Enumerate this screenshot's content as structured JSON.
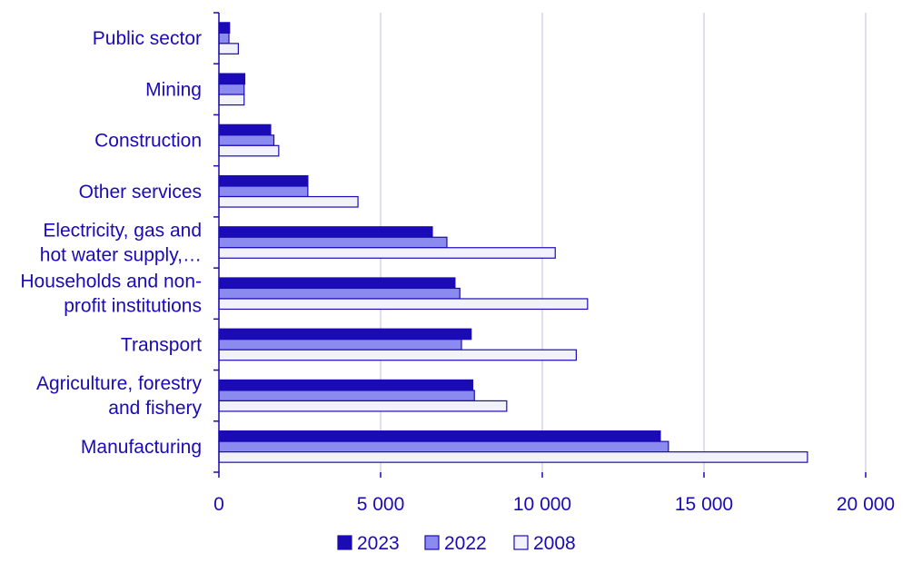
{
  "chart_data": {
    "type": "bar",
    "orientation": "horizontal",
    "categories": [
      [
        "Public sector"
      ],
      [
        "Mining"
      ],
      [
        "Construction"
      ],
      [
        "Other services"
      ],
      [
        "Electricity, gas and",
        "hot water supply,…"
      ],
      [
        "Households and non-",
        "profit institutions"
      ],
      [
        "Transport"
      ],
      [
        "Agriculture, forestry",
        "and fishery"
      ],
      [
        "Manufacturing"
      ]
    ],
    "series": [
      {
        "name": "2023",
        "color": "#1a0bb5",
        "values": [
          330,
          800,
          1600,
          2750,
          6600,
          7300,
          7800,
          7850,
          13650
        ]
      },
      {
        "name": "2022",
        "color": "#8b8bef",
        "values": [
          310,
          780,
          1700,
          2750,
          7050,
          7450,
          7500,
          7900,
          13900
        ]
      },
      {
        "name": "2008",
        "color": "#f2f2fb",
        "values": [
          600,
          780,
          1850,
          4300,
          10400,
          11400,
          11050,
          8900,
          18200
        ]
      }
    ],
    "xlim": [
      0,
      20000
    ],
    "xticks": [
      0,
      5000,
      10000,
      15000,
      20000
    ],
    "xtick_labels": [
      "0",
      "5 000",
      "10 000",
      "15 000",
      "20 000"
    ],
    "grid": "vertical",
    "legend": "bottom",
    "title": "",
    "xlabel": "",
    "ylabel": "",
    "bar_outline_color": "#1a0bb5",
    "grid_color": "#c8c8e6",
    "text_color": "#1a0bb5"
  }
}
